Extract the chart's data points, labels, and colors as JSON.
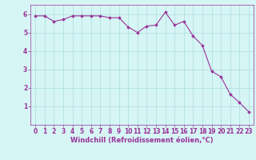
{
  "x": [
    0,
    1,
    2,
    3,
    4,
    5,
    6,
    7,
    8,
    9,
    10,
    11,
    12,
    13,
    14,
    15,
    16,
    17,
    18,
    19,
    20,
    21,
    22,
    23
  ],
  "y": [
    5.9,
    5.9,
    5.6,
    5.7,
    5.9,
    5.9,
    5.9,
    5.9,
    5.8,
    5.8,
    5.3,
    5.0,
    5.35,
    5.4,
    6.1,
    5.4,
    5.6,
    4.8,
    4.3,
    2.9,
    2.6,
    1.65,
    1.2,
    0.7
  ],
  "line_color": "#993399",
  "marker": "D",
  "marker_size": 1.8,
  "bg_color": "#d6f5f5",
  "grid_color": "#aadddd",
  "xlabel": "Windchill (Refroidissement éolien,°C)",
  "xlabel_color": "#993399",
  "xlabel_fontsize": 6.0,
  "tick_color": "#993399",
  "tick_fontsize": 5.5,
  "ylim": [
    0,
    6.5
  ],
  "xlim": [
    -0.5,
    23.5
  ],
  "yticks": [
    1,
    2,
    3,
    4,
    5,
    6
  ],
  "xticks": [
    0,
    1,
    2,
    3,
    4,
    5,
    6,
    7,
    8,
    9,
    10,
    11,
    12,
    13,
    14,
    15,
    16,
    17,
    18,
    19,
    20,
    21,
    22,
    23
  ]
}
